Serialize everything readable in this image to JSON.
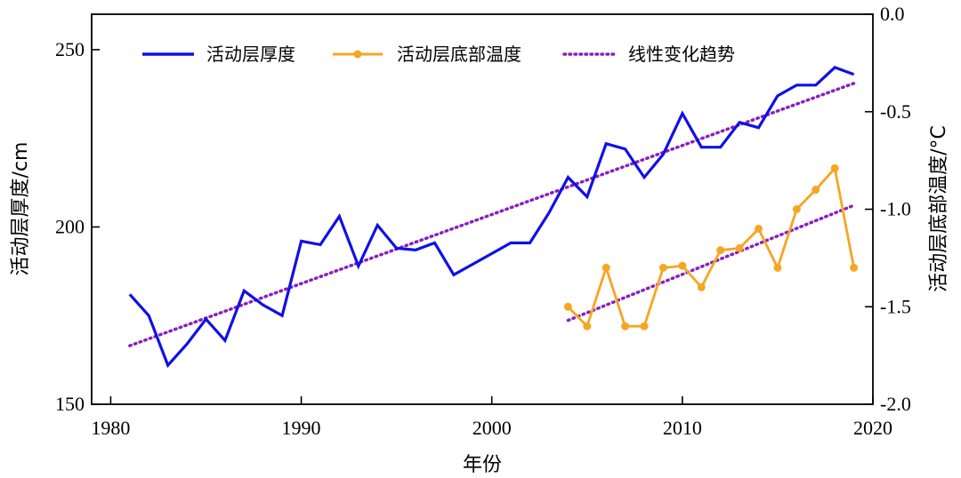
{
  "chart_data": {
    "type": "line",
    "title": "",
    "xlabel": "年份",
    "ylabel_left": "活动层厚度/cm",
    "ylabel_right": "活动层底部温度/°C",
    "xlim": [
      1979,
      2020
    ],
    "ylim_left": [
      150,
      260
    ],
    "ylim_right": [
      -2.0,
      0.0
    ],
    "x_ticks": [
      1980,
      1990,
      2000,
      2010,
      2020
    ],
    "y_ticks_left": [
      150,
      200,
      250
    ],
    "y_ticks_right": [
      -2.0,
      -1.5,
      -1.0,
      -0.5,
      0.0
    ],
    "y_tick_labels_right": [
      "-2.0",
      "-1.5",
      "-1.0",
      "-0.5",
      "0.0"
    ],
    "legend": [
      "活动层厚度",
      "活动层底部温度",
      "线性变化趋势"
    ],
    "legend_position": "top",
    "colors": {
      "thickness": "#1010e6",
      "temperature": "#f5a623",
      "trend": "#8b1fbf"
    },
    "series": [
      {
        "name": "活动层厚度",
        "axis": "left",
        "x": [
          1981,
          1982,
          1983,
          1984,
          1985,
          1986,
          1987,
          1988,
          1989,
          1990,
          1991,
          1992,
          1993,
          1994,
          1995,
          1996,
          1997,
          1998,
          1999,
          2000,
          2001,
          2002,
          2003,
          2004,
          2005,
          2006,
          2007,
          2008,
          2009,
          2010,
          2011,
          2012,
          2013,
          2014,
          2015,
          2016,
          2017,
          2018,
          2019
        ],
        "values": [
          181,
          175,
          161,
          167,
          174,
          168,
          182,
          178,
          175,
          196,
          195,
          203,
          189,
          200.5,
          194,
          193.5,
          195.5,
          186.5,
          189.5,
          192.5,
          195.5,
          195.5,
          204,
          214,
          208.5,
          223.5,
          222,
          214,
          220.5,
          232,
          222.5,
          222.5,
          229.5,
          228,
          237,
          240,
          240,
          245,
          243
        ]
      },
      {
        "name": "活动层底部温度",
        "axis": "right",
        "x": [
          2004,
          2005,
          2006,
          2007,
          2008,
          2009,
          2010,
          2011,
          2012,
          2013,
          2014,
          2015,
          2016,
          2017,
          2018,
          2019
        ],
        "values": [
          -1.5,
          -1.6,
          -1.3,
          -1.6,
          -1.6,
          -1.3,
          -1.29,
          -1.4,
          -1.21,
          -1.2,
          -1.1,
          -1.3,
          -1.0,
          -0.9,
          -0.79,
          -1.3
        ]
      },
      {
        "name": "线性变化趋势",
        "axis": "left",
        "x": [
          1981,
          2019
        ],
        "values": [
          166.5,
          240.5
        ]
      },
      {
        "name": "线性变化趋势",
        "axis": "right",
        "x": [
          2004,
          2019
        ],
        "values": [
          -1.57,
          -0.98
        ]
      }
    ]
  }
}
